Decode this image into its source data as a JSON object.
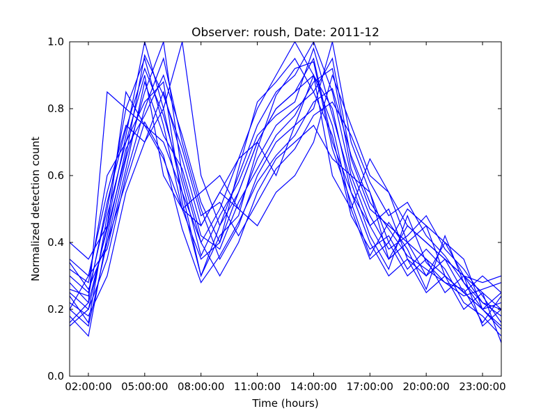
{
  "chart_data": {
    "type": "line",
    "title": "Observer: roush, Date: 2011-12",
    "xlabel": "Time (hours)",
    "ylabel": "Normalized detection count",
    "x_unit": "hour",
    "xlim": [
      1.0,
      24.0
    ],
    "ylim": [
      0.0,
      1.0
    ],
    "x_ticks": [
      2,
      5,
      8,
      11,
      14,
      17,
      20,
      23
    ],
    "x_tick_labels": [
      "02:00:00",
      "05:00:00",
      "08:00:00",
      "11:00:00",
      "14:00:00",
      "17:00:00",
      "20:00:00",
      "23:00:00"
    ],
    "y_ticks": [
      0.0,
      0.2,
      0.4,
      0.6,
      0.8,
      1.0
    ],
    "y_tick_labels": [
      "0.0",
      "0.2",
      "0.4",
      "0.6",
      "0.8",
      "1.0"
    ],
    "grid": false,
    "legend": "none",
    "line_color": "#0000ff",
    "x": [
      1,
      2,
      3,
      4,
      5,
      6,
      7,
      8,
      9,
      10,
      11,
      12,
      13,
      14,
      15,
      16,
      17,
      18,
      19,
      20,
      21,
      22,
      23,
      24
    ],
    "series": [
      {
        "values": [
          0.25,
          0.2,
          0.45,
          0.72,
          1.0,
          0.8,
          0.55,
          0.3,
          0.45,
          0.6,
          0.75,
          0.85,
          0.9,
          1.0,
          0.85,
          0.6,
          0.45,
          0.35,
          0.4,
          0.3,
          0.35,
          0.25,
          0.2,
          0.15
        ]
      },
      {
        "values": [
          0.3,
          0.25,
          0.5,
          0.8,
          0.95,
          0.75,
          0.5,
          0.35,
          0.4,
          0.55,
          0.7,
          0.8,
          0.85,
          0.95,
          0.7,
          0.55,
          0.4,
          0.3,
          0.35,
          0.25,
          0.3,
          0.2,
          0.25,
          0.2
        ]
      },
      {
        "values": [
          0.2,
          0.15,
          0.4,
          0.65,
          0.85,
          1.0,
          0.6,
          0.4,
          0.5,
          0.65,
          0.8,
          0.9,
          1.0,
          0.9,
          0.75,
          0.5,
          0.35,
          0.4,
          0.3,
          0.35,
          0.25,
          0.3,
          0.15,
          0.2
        ]
      },
      {
        "values": [
          0.35,
          0.3,
          0.55,
          0.75,
          0.7,
          0.85,
          0.65,
          0.45,
          0.55,
          0.5,
          0.65,
          0.75,
          0.8,
          0.85,
          0.95,
          0.65,
          0.5,
          0.45,
          0.4,
          0.35,
          0.3,
          0.25,
          0.2,
          0.25
        ]
      },
      {
        "values": [
          0.15,
          0.2,
          0.35,
          0.6,
          0.8,
          0.95,
          0.7,
          0.5,
          0.35,
          0.45,
          0.6,
          0.7,
          0.75,
          0.8,
          1.0,
          0.7,
          0.55,
          0.35,
          0.45,
          0.4,
          0.35,
          0.3,
          0.25,
          0.1
        ]
      },
      {
        "values": [
          0.28,
          0.22,
          0.85,
          0.8,
          0.75,
          0.7,
          0.55,
          0.4,
          0.3,
          0.4,
          0.55,
          0.65,
          0.7,
          0.75,
          0.65,
          0.6,
          0.55,
          0.4,
          0.5,
          0.45,
          0.4,
          0.3,
          0.22,
          0.18
        ]
      },
      {
        "values": [
          0.22,
          0.18,
          0.3,
          0.55,
          0.7,
          0.8,
          1.0,
          0.6,
          0.45,
          0.55,
          0.7,
          0.8,
          0.85,
          0.9,
          0.8,
          0.55,
          0.45,
          0.5,
          0.35,
          0.3,
          0.4,
          0.35,
          0.2,
          0.22
        ]
      },
      {
        "values": [
          0.32,
          0.28,
          0.6,
          0.7,
          0.9,
          0.6,
          0.5,
          0.55,
          0.6,
          0.5,
          0.45,
          0.55,
          0.6,
          0.7,
          0.9,
          0.75,
          0.6,
          0.55,
          0.4,
          0.45,
          0.3,
          0.25,
          0.3,
          0.25
        ]
      },
      {
        "values": [
          0.18,
          0.12,
          0.42,
          0.68,
          0.78,
          0.9,
          0.72,
          0.52,
          0.4,
          0.62,
          0.82,
          0.88,
          0.95,
          0.85,
          0.72,
          0.48,
          0.38,
          0.42,
          0.32,
          0.38,
          0.32,
          0.22,
          0.18,
          0.12
        ]
      },
      {
        "values": [
          0.4,
          0.35,
          0.45,
          0.85,
          0.75,
          0.65,
          0.5,
          0.45,
          0.55,
          0.65,
          0.7,
          0.6,
          0.75,
          0.9,
          0.6,
          0.5,
          0.65,
          0.55,
          0.45,
          0.4,
          0.35,
          0.3,
          0.28,
          0.3
        ]
      },
      {
        "values": [
          0.26,
          0.24,
          0.52,
          0.74,
          0.92,
          0.78,
          0.58,
          0.36,
          0.48,
          0.58,
          0.72,
          0.78,
          0.82,
          0.98,
          0.78,
          0.58,
          0.42,
          0.32,
          0.48,
          0.34,
          0.28,
          0.26,
          0.16,
          0.24
        ]
      },
      {
        "values": [
          0.2,
          0.3,
          0.38,
          0.62,
          0.88,
          0.72,
          0.62,
          0.42,
          0.38,
          0.52,
          0.62,
          0.72,
          0.78,
          0.88,
          0.92,
          0.62,
          0.48,
          0.38,
          0.42,
          0.48,
          0.38,
          0.32,
          0.24,
          0.16
        ]
      },
      {
        "values": [
          0.24,
          0.16,
          0.48,
          0.7,
          0.82,
          0.88,
          0.52,
          0.3,
          0.42,
          0.48,
          0.68,
          0.84,
          0.92,
          0.94,
          0.68,
          0.52,
          0.36,
          0.46,
          0.38,
          0.26,
          0.42,
          0.28,
          0.22,
          0.2
        ]
      },
      {
        "values": [
          0.34,
          0.26,
          0.4,
          0.58,
          0.76,
          0.66,
          0.44,
          0.28,
          0.36,
          0.46,
          0.58,
          0.66,
          0.72,
          0.82,
          0.86,
          0.66,
          0.52,
          0.44,
          0.36,
          0.32,
          0.28,
          0.24,
          0.26,
          0.28
        ]
      },
      {
        "values": [
          0.16,
          0.22,
          0.44,
          0.66,
          0.96,
          0.84,
          0.68,
          0.48,
          0.52,
          0.42,
          0.52,
          0.62,
          0.68,
          0.78,
          0.82,
          0.72,
          0.58,
          0.48,
          0.52,
          0.42,
          0.36,
          0.28,
          0.2,
          0.14
        ]
      }
    ]
  }
}
